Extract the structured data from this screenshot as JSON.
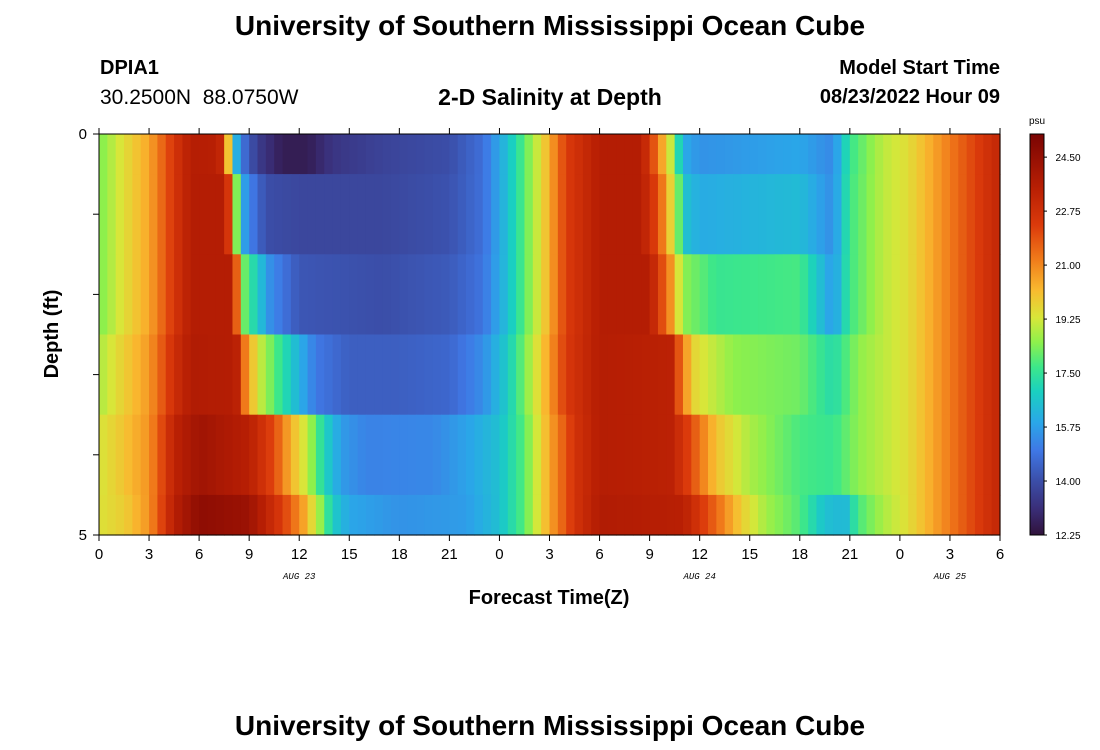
{
  "header": {
    "title": "University of Southern Mississippi Ocean Cube",
    "station_id": "DPIA1",
    "station_coords": "30.2500N  88.0750W",
    "plot_title": "2-D Salinity at Depth",
    "model_start_label": "Model Start Time",
    "model_start_value": "08/23/2022 Hour 09"
  },
  "footer": {
    "title": "University of Southern Mississippi Ocean Cube"
  },
  "chart_data": {
    "type": "heatmap",
    "title": "2-D Salinity at Depth",
    "xlabel": "Forecast Time(Z)",
    "ylabel": "Depth (ft)",
    "x_ticks": [
      "0",
      "3",
      "6",
      "9",
      "12",
      "15",
      "18",
      "21",
      "0",
      "3",
      "6",
      "9",
      "12",
      "15",
      "18",
      "21",
      "0",
      "3",
      "6"
    ],
    "date_labels": [
      "AUG 23",
      "AUG 24",
      "AUG 25"
    ],
    "xlim_hours": [
      0,
      54
    ],
    "y_ticks": [
      "0",
      "5"
    ],
    "ylim": [
      0,
      5
    ],
    "depth_layers": [
      0,
      1,
      2,
      3,
      4,
      5
    ],
    "colorbar": {
      "units": "psu",
      "min": 12.25,
      "max": 25.25,
      "tick_values": [
        "24.50",
        "22.75",
        "21.00",
        "19.25",
        "17.50",
        "15.75",
        "14.00",
        "12.25"
      ]
    },
    "colormap": [
      {
        "v": 12.25,
        "c": "#30123b"
      },
      {
        "v": 13.1,
        "c": "#3a2e78"
      },
      {
        "v": 14.0,
        "c": "#3b4ea8"
      },
      {
        "v": 15.0,
        "c": "#3f78e6"
      },
      {
        "v": 15.9,
        "c": "#2aa7e8"
      },
      {
        "v": 16.9,
        "c": "#1ad0c0"
      },
      {
        "v": 17.7,
        "c": "#3de78a"
      },
      {
        "v": 18.5,
        "c": "#8ef04c"
      },
      {
        "v": 19.3,
        "c": "#d8e639"
      },
      {
        "v": 20.2,
        "c": "#f9b92f"
      },
      {
        "v": 21.2,
        "c": "#f07a1a"
      },
      {
        "v": 22.3,
        "c": "#db3a0b"
      },
      {
        "v": 23.5,
        "c": "#b81f04"
      },
      {
        "v": 25.25,
        "c": "#7a0403"
      }
    ],
    "rows": [
      {
        "depth_from": 0,
        "depth_to": 0.5,
        "points": [
          [
            0,
            18.3
          ],
          [
            1.5,
            19.5
          ],
          [
            3,
            20.5
          ],
          [
            4.5,
            22.5
          ],
          [
            5.5,
            23.6
          ],
          [
            7.2,
            23.5
          ],
          [
            7.7,
            20.5
          ],
          [
            8,
            17.5
          ],
          [
            8.4,
            15.2
          ],
          [
            9.5,
            13.5
          ],
          [
            11,
            12.6
          ],
          [
            12.5,
            12.6
          ],
          [
            14,
            13.3
          ],
          [
            17,
            13.7
          ],
          [
            21,
            14.0
          ],
          [
            23,
            14.8
          ],
          [
            24.5,
            16.5
          ],
          [
            26.5,
            19.5
          ],
          [
            28,
            22.3
          ],
          [
            30,
            23.6
          ],
          [
            32.5,
            23.6
          ],
          [
            33.2,
            22
          ],
          [
            34.3,
            19
          ],
          [
            35,
            16
          ],
          [
            36,
            15.5
          ],
          [
            42,
            15.9
          ],
          [
            44,
            15.3
          ],
          [
            45,
            17.6
          ],
          [
            47,
            19
          ],
          [
            48.5,
            19.5
          ],
          [
            51,
            21.2
          ],
          [
            54,
            23.2
          ]
        ]
      },
      {
        "depth_from": 0.5,
        "depth_to": 1.5,
        "points": [
          [
            0,
            18.3
          ],
          [
            1.5,
            19.5
          ],
          [
            3,
            20.5
          ],
          [
            4.5,
            22.5
          ],
          [
            5.5,
            23.6
          ],
          [
            7.5,
            23.6
          ],
          [
            8.1,
            21
          ],
          [
            8.3,
            17.5
          ],
          [
            8.8,
            15.5
          ],
          [
            10,
            14.0
          ],
          [
            12,
            13.8
          ],
          [
            17,
            13.8
          ],
          [
            21,
            14.1
          ],
          [
            23,
            14.8
          ],
          [
            24.5,
            16.5
          ],
          [
            26.5,
            19.5
          ],
          [
            28,
            22.3
          ],
          [
            30,
            23.6
          ],
          [
            32.5,
            23.6
          ],
          [
            33.5,
            22
          ],
          [
            34.5,
            19
          ],
          [
            35.2,
            16.5
          ],
          [
            36,
            16.0
          ],
          [
            42,
            16.4
          ],
          [
            44,
            15.4
          ],
          [
            45,
            17.7
          ],
          [
            47,
            19
          ],
          [
            48.5,
            19.5
          ],
          [
            51,
            21.2
          ],
          [
            54,
            23.2
          ]
        ]
      },
      {
        "depth_from": 1.5,
        "depth_to": 2.5,
        "points": [
          [
            0,
            18.3
          ],
          [
            1.5,
            19.5
          ],
          [
            3,
            20.5
          ],
          [
            4.5,
            22.5
          ],
          [
            5.5,
            23.6
          ],
          [
            7.8,
            23.6
          ],
          [
            8.4,
            21
          ],
          [
            8.6,
            18.4
          ],
          [
            9.2,
            17.3
          ],
          [
            10.2,
            15.5
          ],
          [
            12,
            14.2
          ],
          [
            17,
            14.0
          ],
          [
            21,
            14.3
          ],
          [
            23,
            14.9
          ],
          [
            24.5,
            16.5
          ],
          [
            26.5,
            19.5
          ],
          [
            28,
            22.3
          ],
          [
            30,
            23.6
          ],
          [
            33,
            23.6
          ],
          [
            34.2,
            21
          ],
          [
            35,
            18.5
          ],
          [
            37,
            17.6
          ],
          [
            42,
            17.8
          ],
          [
            44,
            15.6
          ],
          [
            45,
            17.7
          ],
          [
            47,
            19
          ],
          [
            48.5,
            19.5
          ],
          [
            51,
            21.2
          ],
          [
            54,
            23.2
          ]
        ]
      },
      {
        "depth_from": 2.5,
        "depth_to": 3.5,
        "points": [
          [
            0,
            18.8
          ],
          [
            1.5,
            19.8
          ],
          [
            3,
            20.7
          ],
          [
            4.5,
            22.8
          ],
          [
            5.5,
            23.7
          ],
          [
            8.2,
            23.6
          ],
          [
            8.8,
            21
          ],
          [
            9.5,
            19.3
          ],
          [
            10.5,
            18
          ],
          [
            11.7,
            16.5
          ],
          [
            13,
            15.0
          ],
          [
            15,
            14.4
          ],
          [
            18,
            14.4
          ],
          [
            21,
            14.6
          ],
          [
            23,
            15.4
          ],
          [
            24.5,
            16.8
          ],
          [
            26.5,
            19.8
          ],
          [
            28,
            22.4
          ],
          [
            30,
            23.6
          ],
          [
            34.3,
            23.4
          ],
          [
            35,
            21
          ],
          [
            35.8,
            19.5
          ],
          [
            38,
            18.5
          ],
          [
            42,
            18.2
          ],
          [
            44,
            17.2
          ],
          [
            45.5,
            18.5
          ],
          [
            48.5,
            19.5
          ],
          [
            51,
            21.2
          ],
          [
            54,
            23.2
          ]
        ]
      },
      {
        "depth_from": 3.5,
        "depth_to": 4.5,
        "points": [
          [
            0,
            19.3
          ],
          [
            1.5,
            20.0
          ],
          [
            3,
            20.8
          ],
          [
            4.5,
            23.3
          ],
          [
            6,
            24.2
          ],
          [
            9,
            23.5
          ],
          [
            10.5,
            22
          ],
          [
            11.5,
            20.3
          ],
          [
            12.5,
            19
          ],
          [
            13.5,
            17
          ],
          [
            14.5,
            15.7
          ],
          [
            16,
            15.2
          ],
          [
            20,
            15.3
          ],
          [
            22,
            15.8
          ],
          [
            24,
            16.5
          ],
          [
            25.5,
            18
          ],
          [
            27,
            20.5
          ],
          [
            28.5,
            22.6
          ],
          [
            30,
            23.6
          ],
          [
            34.3,
            23.4
          ],
          [
            35.5,
            22
          ],
          [
            37,
            20
          ],
          [
            39,
            18.8
          ],
          [
            42,
            17.8
          ],
          [
            44,
            17.6
          ],
          [
            45.5,
            18.5
          ],
          [
            48.5,
            19.5
          ],
          [
            51,
            21.2
          ],
          [
            54,
            23.2
          ]
        ]
      },
      {
        "depth_from": 4.5,
        "depth_to": 5,
        "points": [
          [
            0,
            19.4
          ],
          [
            1.5,
            19.8
          ],
          [
            3,
            20.8
          ],
          [
            4.5,
            23.5
          ],
          [
            6,
            24.7
          ],
          [
            9,
            24.3
          ],
          [
            11,
            22.3
          ],
          [
            12.3,
            20.5
          ],
          [
            13.3,
            18.5
          ],
          [
            14,
            16.8
          ],
          [
            15,
            15.9
          ],
          [
            18,
            15.5
          ],
          [
            22,
            15.7
          ],
          [
            24,
            16.5
          ],
          [
            25.5,
            18
          ],
          [
            27,
            20.5
          ],
          [
            28.5,
            22.6
          ],
          [
            30,
            23.7
          ],
          [
            35,
            23.5
          ],
          [
            37,
            21.5
          ],
          [
            38.5,
            19.8
          ],
          [
            40,
            18.7
          ],
          [
            42,
            17.9
          ],
          [
            43.5,
            16.5
          ],
          [
            44.7,
            16.3
          ],
          [
            45.5,
            17.8
          ],
          [
            47,
            18.8
          ],
          [
            48.5,
            19.5
          ],
          [
            51,
            21.2
          ],
          [
            54,
            23.2
          ]
        ]
      }
    ]
  }
}
